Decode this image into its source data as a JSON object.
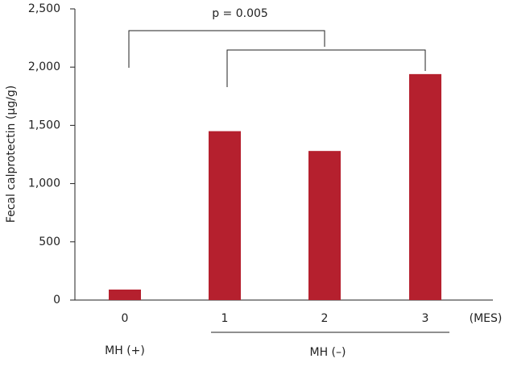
{
  "chart_data": {
    "type": "bar",
    "y_label": "Fecal calprotectin (µg/g)",
    "categories": [
      "0",
      "1",
      "2",
      "3"
    ],
    "x_unit_label": "(MES)",
    "group_labels": [
      "MH (+)",
      "MH (–)"
    ],
    "annotation": "p = 0.005",
    "values": [
      90,
      1450,
      1280,
      1940
    ],
    "color": "#b5202e",
    "ylim": [
      0,
      2500
    ],
    "yticks": [
      0,
      500,
      {
        "value": 1000,
        "label": "1,000"
      },
      {
        "value": 1500,
        "label": "1,500"
      },
      {
        "value": 2000,
        "label": "2,000"
      },
      {
        "value": 2500,
        "label": "2,500"
      }
    ],
    "grid": false
  }
}
